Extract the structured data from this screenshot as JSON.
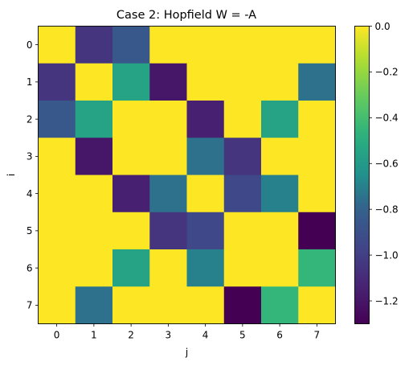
{
  "chart_data": {
    "type": "heatmap",
    "title": "Case 2: Hopfield W = -A",
    "xlabel": "j",
    "ylabel": "i",
    "x_ticks": [
      "0",
      "1",
      "2",
      "3",
      "4",
      "5",
      "6",
      "7"
    ],
    "y_ticks": [
      "0",
      "1",
      "2",
      "3",
      "4",
      "5",
      "6",
      "7"
    ],
    "colormap": "viridis",
    "vmin": -1.3,
    "vmax": 0.0,
    "colorbar_ticks": [
      {
        "value": 0.0,
        "label": "0.0"
      },
      {
        "value": -0.2,
        "label": "−0.2"
      },
      {
        "value": -0.4,
        "label": "−0.4"
      },
      {
        "value": -0.6,
        "label": "−0.6"
      },
      {
        "value": -0.8,
        "label": "−0.8"
      },
      {
        "value": -1.0,
        "label": "−1.0"
      },
      {
        "value": -1.2,
        "label": "−1.2"
      }
    ],
    "values": [
      [
        0.0,
        -1.05,
        -0.85,
        0.0,
        0.0,
        0.0,
        0.0,
        0.0
      ],
      [
        -1.05,
        0.0,
        -0.55,
        -1.2,
        0.0,
        0.0,
        0.0,
        -0.75
      ],
      [
        -0.85,
        -0.55,
        0.0,
        0.0,
        -1.15,
        0.0,
        -0.55,
        0.0
      ],
      [
        0.0,
        -1.2,
        0.0,
        0.0,
        -0.75,
        -1.05,
        0.0,
        0.0
      ],
      [
        0.0,
        0.0,
        -1.15,
        -0.75,
        0.0,
        -0.95,
        -0.7,
        0.0
      ],
      [
        0.0,
        0.0,
        0.0,
        -1.05,
        -0.95,
        0.0,
        0.0,
        -1.3
      ],
      [
        0.0,
        0.0,
        -0.55,
        0.0,
        -0.7,
        0.0,
        0.0,
        -0.45
      ],
      [
        0.0,
        -0.75,
        0.0,
        0.0,
        0.0,
        -1.3,
        -0.45,
        0.0
      ]
    ]
  }
}
